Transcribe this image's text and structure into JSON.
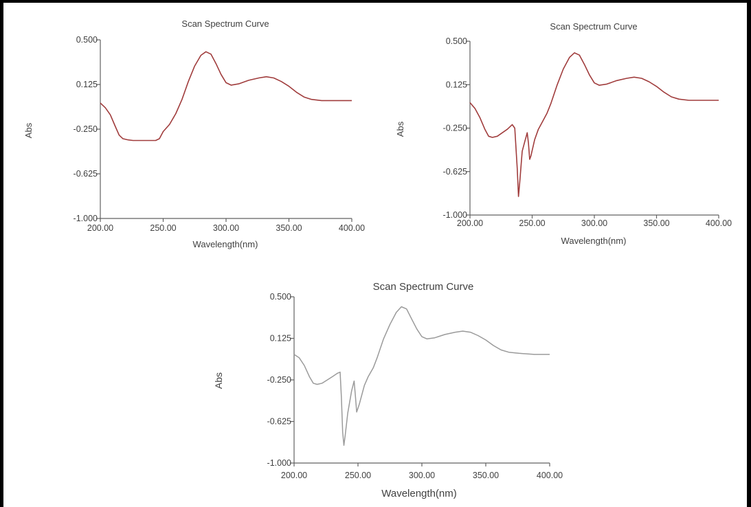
{
  "chart_data": [
    {
      "type": "line",
      "title": "Scan Spectrum Curve",
      "xlabel": "Wavelength(nm)",
      "ylabel": "Abs",
      "xlim": [
        200,
        400
      ],
      "ylim": [
        -1.0,
        0.5
      ],
      "xticks": [
        "200.00",
        "250.00",
        "300.00",
        "350.00",
        "400.00"
      ],
      "yticks": [
        "0.500",
        "0.125",
        "-0.250",
        "-0.625",
        "-1.000"
      ],
      "grid": false,
      "line_color": "#a03c3c",
      "series": [
        {
          "points": [
            [
              200,
              -0.03
            ],
            [
              204,
              -0.07
            ],
            [
              208,
              -0.13
            ],
            [
              212,
              -0.23
            ],
            [
              215,
              -0.3
            ],
            [
              218,
              -0.33
            ],
            [
              222,
              -0.34
            ],
            [
              226,
              -0.345
            ],
            [
              232,
              -0.345
            ],
            [
              238,
              -0.345
            ],
            [
              244,
              -0.345
            ],
            [
              247,
              -0.33
            ],
            [
              250,
              -0.27
            ],
            [
              255,
              -0.21
            ],
            [
              260,
              -0.12
            ],
            [
              265,
              0.0
            ],
            [
              270,
              0.15
            ],
            [
              275,
              0.28
            ],
            [
              280,
              0.37
            ],
            [
              284,
              0.4
            ],
            [
              288,
              0.38
            ],
            [
              292,
              0.3
            ],
            [
              296,
              0.21
            ],
            [
              300,
              0.14
            ],
            [
              304,
              0.12
            ],
            [
              310,
              0.13
            ],
            [
              318,
              0.16
            ],
            [
              326,
              0.18
            ],
            [
              332,
              0.19
            ],
            [
              338,
              0.18
            ],
            [
              344,
              0.15
            ],
            [
              350,
              0.11
            ],
            [
              356,
              0.06
            ],
            [
              362,
              0.02
            ],
            [
              368,
              0.0
            ],
            [
              376,
              -0.01
            ],
            [
              388,
              -0.01
            ],
            [
              400,
              -0.01
            ]
          ]
        }
      ]
    },
    {
      "type": "line",
      "title": "Scan Spectrum Curve",
      "xlabel": "Wavelength(nm)",
      "ylabel": "Abs",
      "xlim": [
        200,
        400
      ],
      "ylim": [
        -1.0,
        0.5
      ],
      "xticks": [
        "200.00",
        "250.00",
        "300.00",
        "350.00",
        "400.00"
      ],
      "yticks": [
        "0.500",
        "0.125",
        "-0.250",
        "-0.625",
        "-1.000"
      ],
      "grid": false,
      "line_color": "#a03c3c",
      "series": [
        {
          "points": [
            [
              200,
              -0.03
            ],
            [
              204,
              -0.08
            ],
            [
              208,
              -0.16
            ],
            [
              212,
              -0.26
            ],
            [
              215,
              -0.32
            ],
            [
              218,
              -0.33
            ],
            [
              222,
              -0.32
            ],
            [
              226,
              -0.29
            ],
            [
              230,
              -0.26
            ],
            [
              234,
              -0.22
            ],
            [
              236,
              -0.25
            ],
            [
              238,
              -0.6
            ],
            [
              239,
              -0.84
            ],
            [
              240,
              -0.72
            ],
            [
              242,
              -0.45
            ],
            [
              244,
              -0.37
            ],
            [
              246,
              -0.29
            ],
            [
              247,
              -0.38
            ],
            [
              248,
              -0.52
            ],
            [
              249,
              -0.49
            ],
            [
              252,
              -0.35
            ],
            [
              255,
              -0.26
            ],
            [
              258,
              -0.2
            ],
            [
              262,
              -0.12
            ],
            [
              265,
              -0.04
            ],
            [
              270,
              0.12
            ],
            [
              275,
              0.26
            ],
            [
              280,
              0.36
            ],
            [
              284,
              0.4
            ],
            [
              288,
              0.38
            ],
            [
              292,
              0.3
            ],
            [
              296,
              0.21
            ],
            [
              300,
              0.14
            ],
            [
              304,
              0.12
            ],
            [
              310,
              0.13
            ],
            [
              318,
              0.16
            ],
            [
              326,
              0.18
            ],
            [
              332,
              0.19
            ],
            [
              338,
              0.18
            ],
            [
              344,
              0.15
            ],
            [
              350,
              0.11
            ],
            [
              356,
              0.06
            ],
            [
              362,
              0.02
            ],
            [
              368,
              0.0
            ],
            [
              376,
              -0.01
            ],
            [
              388,
              -0.01
            ],
            [
              400,
              -0.01
            ]
          ]
        }
      ]
    },
    {
      "type": "line",
      "title": "Scan Spectrum Curve",
      "xlabel": "Wavelength(nm)",
      "ylabel": "Abs",
      "xlim": [
        200,
        400
      ],
      "ylim": [
        -1.0,
        0.5
      ],
      "xticks": [
        "200.00",
        "250.00",
        "300.00",
        "350.00",
        "400.00"
      ],
      "yticks": [
        "0.500",
        "0.125",
        "-0.250",
        "-0.625",
        "-1.000"
      ],
      "grid": false,
      "line_color": "#9a9a9a",
      "series": [
        {
          "points": [
            [
              200,
              -0.02
            ],
            [
              204,
              -0.05
            ],
            [
              208,
              -0.12
            ],
            [
              212,
              -0.22
            ],
            [
              215,
              -0.28
            ],
            [
              218,
              -0.29
            ],
            [
              222,
              -0.28
            ],
            [
              226,
              -0.25
            ],
            [
              230,
              -0.22
            ],
            [
              234,
              -0.19
            ],
            [
              236,
              -0.18
            ],
            [
              237,
              -0.4
            ],
            [
              238,
              -0.72
            ],
            [
              239,
              -0.84
            ],
            [
              240,
              -0.75
            ],
            [
              242,
              -0.55
            ],
            [
              245,
              -0.35
            ],
            [
              247,
              -0.26
            ],
            [
              248,
              -0.4
            ],
            [
              249,
              -0.54
            ],
            [
              251,
              -0.47
            ],
            [
              255,
              -0.3
            ],
            [
              258,
              -0.22
            ],
            [
              262,
              -0.14
            ],
            [
              265,
              -0.05
            ],
            [
              270,
              0.12
            ],
            [
              275,
              0.25
            ],
            [
              280,
              0.36
            ],
            [
              284,
              0.41
            ],
            [
              288,
              0.39
            ],
            [
              292,
              0.3
            ],
            [
              296,
              0.21
            ],
            [
              300,
              0.14
            ],
            [
              304,
              0.12
            ],
            [
              310,
              0.13
            ],
            [
              318,
              0.16
            ],
            [
              326,
              0.18
            ],
            [
              332,
              0.19
            ],
            [
              338,
              0.18
            ],
            [
              344,
              0.15
            ],
            [
              350,
              0.11
            ],
            [
              356,
              0.06
            ],
            [
              362,
              0.02
            ],
            [
              368,
              0.0
            ],
            [
              376,
              -0.01
            ],
            [
              388,
              -0.02
            ],
            [
              400,
              -0.02
            ]
          ]
        }
      ]
    }
  ]
}
